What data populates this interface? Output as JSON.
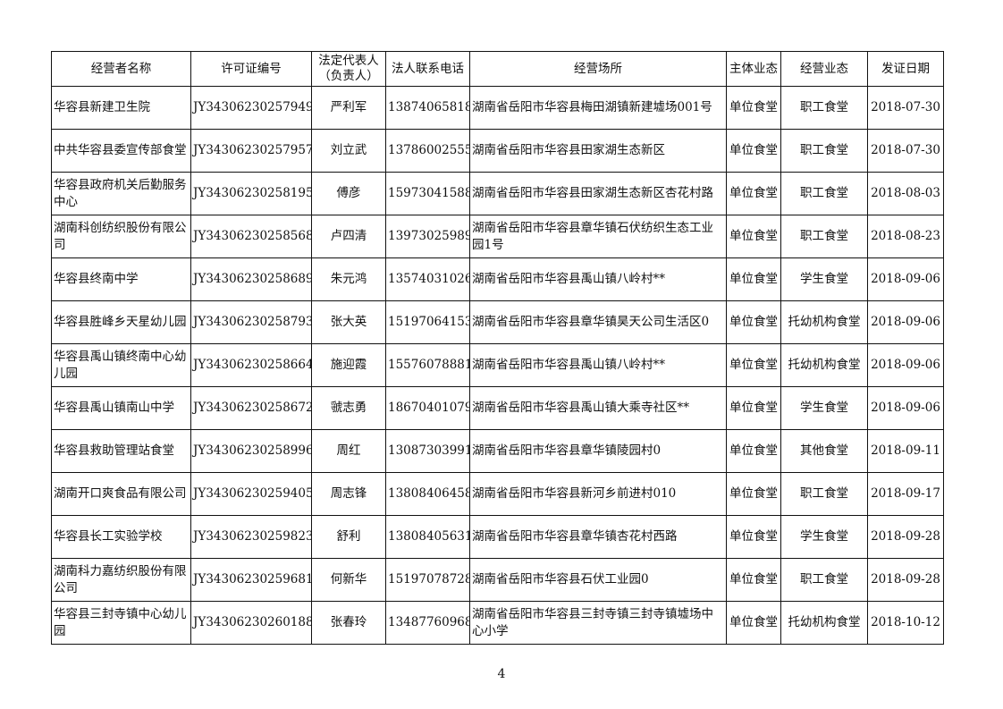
{
  "table": {
    "headers": [
      "经营者名称",
      "许可证编号",
      "法定代表人\n（负责人）",
      "法人联系电话",
      "经营场所",
      "主体业态",
      "经营业态",
      "发证日期"
    ],
    "rows": [
      [
        "华容县新建卫生院",
        "JY34306230257949",
        "严利军",
        "13874065818",
        "湖南省岳阳市华容县梅田湖镇新建墟场001号",
        "单位食堂",
        "职工食堂",
        "2018-07-30"
      ],
      [
        "中共华容县委宣传部食堂",
        "JY34306230257957",
        "刘立武",
        "13786002555",
        "湖南省岳阳市华容县田家湖生态新区",
        "单位食堂",
        "职工食堂",
        "2018-07-30"
      ],
      [
        "华容县政府机关后勤服务中心",
        "JY34306230258195",
        "傅彦",
        "15973041588",
        "湖南省岳阳市华容县田家湖生态新区杏花村路",
        "单位食堂",
        "职工食堂",
        "2018-08-03"
      ],
      [
        "湖南科创纺织股份有限公司",
        "JY34306230258568",
        "卢四清",
        "13973025989",
        "湖南省岳阳市华容县章华镇石伏纺织生态工业园1号",
        "单位食堂",
        "职工食堂",
        "2018-08-23"
      ],
      [
        "华容县终南中学",
        "JY34306230258689",
        "朱元鸿",
        "13574031026",
        "湖南省岳阳市华容县禹山镇八岭村**",
        "单位食堂",
        "学生食堂",
        "2018-09-06"
      ],
      [
        "华容县胜峰乡天星幼儿园",
        "JY34306230258793",
        "张大英",
        "15197064153",
        "湖南省岳阳市华容县章华镇昊天公司生活区0",
        "单位食堂",
        "托幼机构食堂",
        "2018-09-06"
      ],
      [
        "华容县禹山镇终南中心幼儿园",
        "JY34306230258664",
        "施迎霞",
        "15576078881",
        "湖南省岳阳市华容县禹山镇八岭村**",
        "单位食堂",
        "托幼机构食堂",
        "2018-09-06"
      ],
      [
        "华容县禹山镇南山中学",
        "JY34306230258672",
        "虢志勇",
        "18670401079",
        "湖南省岳阳市华容县禹山镇大乘寺社区**",
        "单位食堂",
        "学生食堂",
        "2018-09-06"
      ],
      [
        "华容县救助管理站食堂",
        "JY34306230258996",
        "周红",
        "13087303991",
        "湖南省岳阳市华容县章华镇陵园村0",
        "单位食堂",
        "其他食堂",
        "2018-09-11"
      ],
      [
        "湖南开口爽食品有限公司",
        "JY34306230259405",
        "周志锋",
        "13808406458",
        "湖南省岳阳市华容县新河乡前进村010",
        "单位食堂",
        "职工食堂",
        "2018-09-17"
      ],
      [
        "华容县长工实验学校",
        "JY34306230259823",
        "舒利",
        "13808405631",
        "湖南省岳阳市华容县章华镇杏花村西路",
        "单位食堂",
        "学生食堂",
        "2018-09-28"
      ],
      [
        "湖南科力嘉纺织股份有限公司",
        "JY34306230259681",
        "何新华",
        "15197078728",
        "湖南省岳阳市华容县石伏工业园0",
        "单位食堂",
        "职工食堂",
        "2018-09-28"
      ],
      [
        "华容县三封寺镇中心幼儿园",
        "JY34306230260188",
        "张春玲",
        "13487760968",
        "湖南省岳阳市华容县三封寺镇三封寺镇墟场中心小学",
        "单位食堂",
        "托幼机构食堂",
        "2018-10-12"
      ]
    ]
  },
  "page_number": "4"
}
